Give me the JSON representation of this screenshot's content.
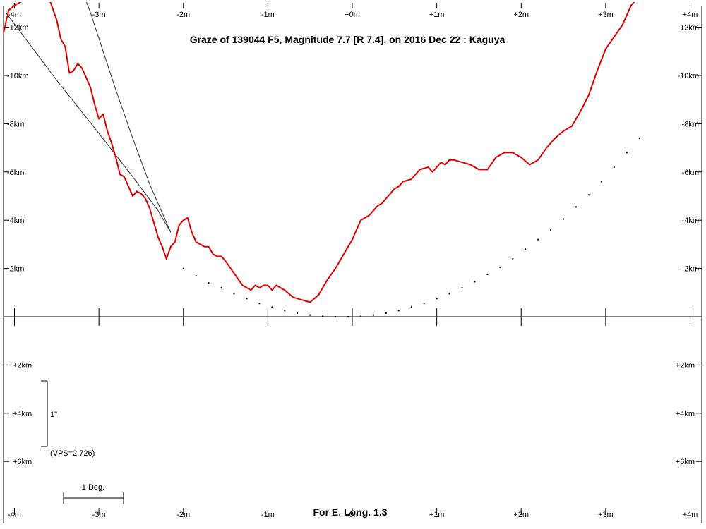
{
  "chart_data": {
    "type": "line",
    "title": "Graze of  139044 F5,  Magnitude 7.7 [R 7.4],  on 2016 Dec 22  :  Kaguya",
    "footer": "For E. Long. 1.3",
    "x_ticks": [
      "-4m",
      "-3m",
      "-2m",
      "-1m",
      "+0m",
      "+1m",
      "+2m",
      "+3m",
      "+4m"
    ],
    "y_ticks_upper": [
      "-12km",
      "-10km",
      "-8km",
      "-6km",
      "-4km",
      "-2km"
    ],
    "y_ticks_lower": [
      "+2km",
      "+4km",
      "+6km"
    ],
    "xlim": [
      -4,
      4
    ],
    "ylim": [
      -13,
      8
    ],
    "scale_label": "1\"",
    "vps_label": "(VPS=2.726)",
    "deg_label": "1 Deg.",
    "colors": {
      "profile": "#e00000",
      "axes": "#000000",
      "limb": "#333333"
    },
    "series": [
      {
        "type": "line",
        "x": [
          -4.14,
          -4.07,
          -4.0,
          -3.9,
          -3.8,
          -3.7,
          -3.6,
          -3.5,
          -3.45,
          -3.4,
          -3.35,
          -3.3,
          -3.25,
          -3.2,
          -3.1,
          -3.05,
          -3.0,
          -2.95,
          -2.9,
          -2.85,
          -2.8,
          -2.75,
          -2.7,
          -2.65,
          -2.6,
          -2.55,
          -2.5,
          -2.45,
          -2.4,
          -2.35,
          -2.3,
          -2.25,
          -2.2,
          -2.15,
          -2.1,
          -2.05,
          -2.0,
          -1.95,
          -1.9,
          -1.85,
          -1.8,
          -1.75,
          -1.7,
          -1.65,
          -1.6,
          -1.55,
          -1.5,
          -1.4,
          -1.3,
          -1.2,
          -1.15,
          -1.1,
          -1.05,
          -1.0,
          -0.95,
          -0.9,
          -0.85,
          -0.8,
          -0.7,
          -0.6,
          -0.5,
          -0.4,
          -0.3,
          -0.2,
          -0.1,
          0.0,
          0.05,
          0.1,
          0.15,
          0.2,
          0.25,
          0.3,
          0.35,
          0.4,
          0.45,
          0.5,
          0.55,
          0.6,
          0.7,
          0.8,
          0.9,
          0.95,
          1.0,
          1.05,
          1.1,
          1.15,
          1.2,
          1.3,
          1.4,
          1.5,
          1.6,
          1.7,
          1.8,
          1.9,
          2.0,
          2.1,
          2.2,
          2.3,
          2.4,
          2.5,
          2.6,
          2.7,
          2.8,
          2.9,
          3.0,
          3.1,
          3.2,
          3.3,
          3.4
        ],
        "y": [
          -11.6,
          -12.7,
          -12.9,
          -13.1,
          -13.3,
          -13.4,
          -13.3,
          -12.3,
          -11.5,
          -11.2,
          -10.1,
          -10.2,
          -10.5,
          -10.3,
          -9.5,
          -8.8,
          -8.2,
          -8.4,
          -7.7,
          -7.2,
          -6.6,
          -5.9,
          -5.8,
          -5.4,
          -5.0,
          -5.2,
          -5.1,
          -4.9,
          -4.5,
          -3.9,
          -3.3,
          -2.9,
          -2.4,
          -2.9,
          -3.1,
          -3.8,
          -4.0,
          -4.1,
          -3.5,
          -3.1,
          -3.0,
          -2.9,
          -2.9,
          -2.6,
          -2.5,
          -2.5,
          -2.3,
          -1.8,
          -1.3,
          -1.1,
          -1.3,
          -1.2,
          -1.3,
          -1.3,
          -1.1,
          -1.3,
          -1.2,
          -1.1,
          -0.8,
          -0.7,
          -0.6,
          -0.9,
          -1.5,
          -2.0,
          -2.6,
          -3.2,
          -3.6,
          -4.0,
          -4.1,
          -4.2,
          -4.4,
          -4.6,
          -4.7,
          -4.9,
          -5.1,
          -5.3,
          -5.4,
          -5.6,
          -5.7,
          -6.1,
          -6.2,
          -6.0,
          -6.2,
          -6.4,
          -6.3,
          -6.5,
          -6.5,
          -6.4,
          -6.3,
          -6.1,
          -6.1,
          -6.6,
          -6.8,
          -6.8,
          -6.6,
          -6.3,
          -6.5,
          -7.0,
          -7.4,
          -7.7,
          -7.9,
          -8.5,
          -9.2,
          -10.2,
          -11.1,
          -11.6,
          -12.1,
          -12.9,
          -13.3
        ]
      },
      {
        "type": "scatter",
        "x": [
          -2.2,
          -2.0,
          -1.85,
          -1.7,
          -1.55,
          -1.4,
          -1.25,
          -1.1,
          -0.95,
          -0.8,
          -0.65,
          -0.5,
          -0.35,
          -0.2,
          -0.05,
          0.1,
          0.25,
          0.4,
          0.55,
          0.7,
          0.85,
          1.0,
          1.15,
          1.3,
          1.45,
          1.6,
          1.75,
          1.9,
          2.05,
          2.2,
          2.35,
          2.5,
          2.65,
          2.8,
          2.95,
          3.1,
          3.25,
          3.4
        ],
        "y": [
          -2.4,
          -2.0,
          -1.7,
          -1.4,
          -1.2,
          -0.95,
          -0.75,
          -0.55,
          -0.4,
          -0.25,
          -0.15,
          -0.07,
          -0.02,
          0.0,
          0.0,
          -0.02,
          -0.07,
          -0.15,
          -0.25,
          -0.4,
          -0.55,
          -0.75,
          -0.95,
          -1.2,
          -1.45,
          -1.75,
          -2.05,
          -2.4,
          -2.8,
          -3.2,
          -3.6,
          -4.05,
          -4.55,
          -5.05,
          -5.6,
          -6.2,
          -6.8,
          -7.4
        ]
      },
      {
        "type": "line",
        "x": [
          -4.1,
          -3.5,
          -3.0,
          -2.6,
          -2.3,
          -2.15
        ],
        "y": [
          -12.6,
          -9.8,
          -7.6,
          -5.8,
          -4.4,
          -3.5
        ]
      },
      {
        "type": "line",
        "x": [
          -2.15,
          -2.4,
          -2.6,
          -2.8,
          -2.95,
          -3.1,
          -3.25
        ],
        "y": [
          -3.5,
          -5.5,
          -7.4,
          -9.4,
          -11.0,
          -12.6,
          -14.0
        ]
      }
    ]
  }
}
